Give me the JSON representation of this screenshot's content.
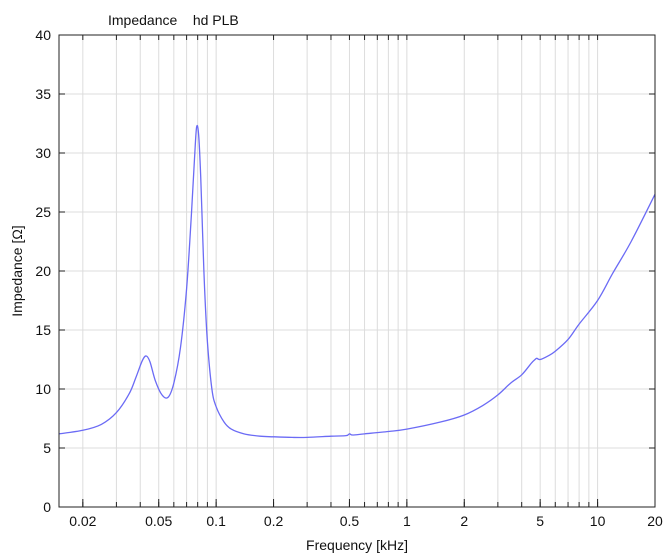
{
  "chart_data": {
    "type": "line",
    "title": "Impedance    hd PLB",
    "xlabel": "Frequency [kHz]",
    "ylabel": "Impedance [Ω]",
    "x_scale": "log",
    "xlim": [
      0.015,
      20
    ],
    "ylim": [
      0,
      40
    ],
    "grid": true,
    "x_ticks": [
      0.02,
      0.05,
      0.1,
      0.2,
      0.5,
      1,
      2,
      5,
      10,
      20
    ],
    "x_tick_labels": [
      "0.02",
      "0.05",
      "0.1",
      "0.2",
      "0.5",
      "1",
      "2",
      "5",
      "10",
      "20"
    ],
    "y_ticks": [
      0,
      5,
      10,
      15,
      20,
      25,
      30,
      35,
      40
    ],
    "y_tick_labels": [
      "0",
      "5",
      "10",
      "15",
      "20",
      "25",
      "30",
      "35",
      "40"
    ],
    "series": [
      {
        "color": "#6b6bf5",
        "x": [
          0.015,
          0.02,
          0.025,
          0.03,
          0.035,
          0.038,
          0.041,
          0.043,
          0.045,
          0.048,
          0.052,
          0.056,
          0.06,
          0.065,
          0.07,
          0.074,
          0.077,
          0.079,
          0.081,
          0.083,
          0.085,
          0.087,
          0.09,
          0.095,
          0.1,
          0.11,
          0.12,
          0.14,
          0.17,
          0.2,
          0.25,
          0.3,
          0.4,
          0.48,
          0.5,
          0.52,
          0.6,
          0.8,
          1,
          1.5,
          2,
          2.5,
          3,
          3.5,
          4,
          4.5,
          4.7,
          4.8,
          5,
          5.5,
          6,
          7,
          8,
          10,
          12,
          15,
          20
        ],
        "y": [
          6.2,
          6.5,
          7.0,
          8.0,
          9.6,
          11.0,
          12.4,
          12.8,
          12.3,
          10.7,
          9.5,
          9.3,
          10.5,
          13.5,
          18.5,
          24.5,
          29.5,
          32.2,
          31.5,
          28.0,
          23.0,
          18.5,
          14.0,
          10.0,
          8.5,
          7.2,
          6.6,
          6.2,
          6.0,
          5.95,
          5.9,
          5.9,
          6.0,
          6.05,
          6.2,
          6.1,
          6.2,
          6.4,
          6.6,
          7.2,
          7.8,
          8.6,
          9.5,
          10.5,
          11.2,
          12.2,
          12.5,
          12.6,
          12.5,
          12.8,
          13.2,
          14.2,
          15.5,
          17.5,
          19.8,
          22.5,
          26.5
        ]
      }
    ]
  }
}
